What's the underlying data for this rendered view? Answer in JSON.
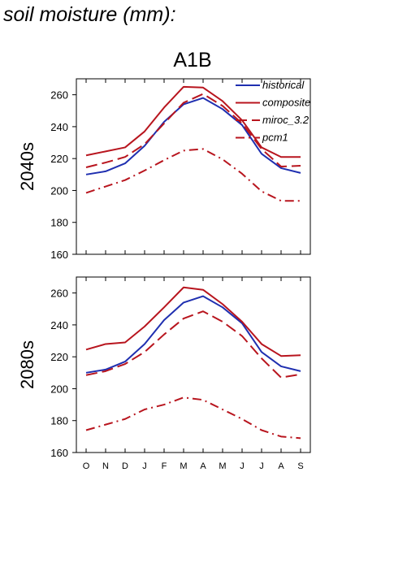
{
  "title": "soil moisture (mm):",
  "scenario": "A1B",
  "colors": {
    "blue": "#1f2fb0",
    "red": "#b8151e"
  },
  "chart_data": [
    {
      "type": "line",
      "row_label": "2040s",
      "categories": [
        "O",
        "N",
        "D",
        "J",
        "F",
        "M",
        "A",
        "M",
        "J",
        "J",
        "A",
        "S"
      ],
      "ylim": [
        160,
        270
      ],
      "yticks": [
        160,
        180,
        200,
        220,
        240,
        260
      ],
      "legend": "top-right",
      "series": [
        {
          "name": "historical",
          "color": "#1f2fb0",
          "dash": "solid",
          "values": [
            210,
            212,
            217,
            228,
            243,
            254,
            258,
            251,
            241,
            223,
            214,
            211
          ]
        },
        {
          "name": "composite",
          "color": "#b8151e",
          "dash": "solid",
          "values": [
            222,
            224.5,
            227,
            237,
            252,
            265,
            264.5,
            256,
            244,
            227,
            221,
            221
          ]
        },
        {
          "name": "miroc_3.2",
          "color": "#b8151e",
          "dash": "dash",
          "values": [
            214.5,
            217.5,
            221,
            229,
            242,
            255,
            260.5,
            253,
            242,
            226,
            215,
            215.5
          ]
        },
        {
          "name": "pcm1",
          "color": "#b8151e",
          "dash": "dashdot",
          "values": [
            198.5,
            202.5,
            206.5,
            212.5,
            219,
            225,
            226,
            219.5,
            210.5,
            199.5,
            193.5,
            193.5
          ]
        }
      ]
    },
    {
      "type": "line",
      "row_label": "2080s",
      "categories": [
        "O",
        "N",
        "D",
        "J",
        "F",
        "M",
        "A",
        "M",
        "J",
        "J",
        "A",
        "S"
      ],
      "ylim": [
        160,
        270
      ],
      "yticks": [
        160,
        180,
        200,
        220,
        240,
        260
      ],
      "series": [
        {
          "name": "historical",
          "color": "#1f2fb0",
          "dash": "solid",
          "values": [
            210,
            212,
            217,
            228,
            243,
            254,
            258,
            251,
            241,
            223,
            214,
            211
          ]
        },
        {
          "name": "composite",
          "color": "#b8151e",
          "dash": "solid",
          "values": [
            224.5,
            228,
            229,
            239,
            251,
            263.5,
            262,
            253,
            242,
            228,
            220.5,
            221
          ]
        },
        {
          "name": "miroc_3.2",
          "color": "#b8151e",
          "dash": "dash",
          "values": [
            208.5,
            211,
            215.5,
            223,
            234,
            244,
            248.5,
            242,
            233,
            219,
            207,
            209
          ]
        },
        {
          "name": "pcm1",
          "color": "#b8151e",
          "dash": "dashdot",
          "values": [
            174,
            177.5,
            181,
            187,
            190,
            194.5,
            193,
            187,
            181,
            174,
            170,
            169
          ]
        }
      ]
    }
  ]
}
